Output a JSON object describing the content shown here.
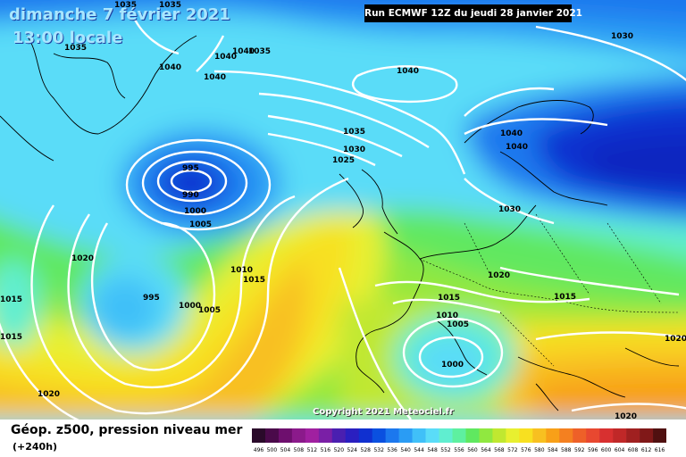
{
  "header": {
    "date": "dimanche 7 février 2021",
    "time": "13:00 locale",
    "run": "Run ECMWF 12Z du jeudi 28 janvier 2021"
  },
  "copyright": "Copyright 2021 Meteociel.fr",
  "legend": {
    "title": "Géop. z500, pression niveau mer",
    "subtitle": "(+240h)",
    "scale": [
      "496",
      "500",
      "504",
      "508",
      "512",
      "516",
      "520",
      "524",
      "528",
      "532",
      "536",
      "540",
      "544",
      "548",
      "552",
      "556",
      "560",
      "564",
      "568",
      "572",
      "576",
      "580",
      "584",
      "588",
      "592",
      "596",
      "600",
      "604",
      "608",
      "612",
      "616"
    ],
    "colors": [
      "#2a0a2a",
      "#4a0a4a",
      "#6e0f6e",
      "#8b1a8b",
      "#a020a0",
      "#7a1fa6",
      "#4a1fb0",
      "#2a1fc0",
      "#1030d0",
      "#0a50e0",
      "#1c78ee",
      "#2a9cf4",
      "#40c0f8",
      "#5adcf8",
      "#60eed0",
      "#5ef0a0",
      "#60e860",
      "#90e840",
      "#c0e830",
      "#e8f030",
      "#f8e020",
      "#f8c020",
      "#f8a018",
      "#f48020",
      "#ee6028",
      "#e84830",
      "#d83030",
      "#c02828",
      "#a02020",
      "#801818",
      "#501010"
    ]
  },
  "map_labels": [
    {
      "text": "1035",
      "name": "isobar-label-1035-a"
    },
    {
      "text": "1035",
      "name": "isobar-label-1035-b"
    },
    {
      "text": "1035",
      "name": "isobar-label-1035-c"
    },
    {
      "text": "1040",
      "name": "isobar-label-1040-a"
    },
    {
      "text": "1040",
      "name": "isobar-label-1040-b"
    },
    {
      "text": "1035",
      "name": "isobar-label-1035-d"
    },
    {
      "text": "1040",
      "name": "isobar-label-1040-c"
    },
    {
      "text": "1040",
      "name": "isobar-label-1040-d"
    },
    {
      "text": "1040",
      "name": "isobar-label-1040-e"
    },
    {
      "text": "1035",
      "name": "isobar-label-1035-e"
    },
    {
      "text": "1030",
      "name": "isobar-label-1030-a"
    },
    {
      "text": "1025",
      "name": "isobar-label-1025-a"
    },
    {
      "text": "995",
      "name": "isobar-label-995-a"
    },
    {
      "text": "990",
      "name": "isobar-label-990-a"
    },
    {
      "text": "1000",
      "name": "isobar-label-1000-a"
    },
    {
      "text": "1005",
      "name": "isobar-label-1005-a"
    },
    {
      "text": "1030",
      "name": "isobar-label-1030-b"
    },
    {
      "text": "1040",
      "name": "isobar-label-1040-f"
    },
    {
      "text": "1040",
      "name": "isobar-label-1040-g"
    },
    {
      "text": "1030",
      "name": "isobar-label-1030-c"
    },
    {
      "text": "1020",
      "name": "isobar-label-1020-a"
    },
    {
      "text": "1010",
      "name": "isobar-label-1010-a"
    },
    {
      "text": "1015",
      "name": "isobar-label-1015-a"
    },
    {
      "text": "995",
      "name": "isobar-label-995-b"
    },
    {
      "text": "1000",
      "name": "isobar-label-1000-b"
    },
    {
      "text": "1005",
      "name": "isobar-label-1005-b"
    },
    {
      "text": "1015",
      "name": "isobar-label-1015-b"
    },
    {
      "text": "1015",
      "name": "isobar-label-1015-c"
    },
    {
      "text": "1020",
      "name": "isobar-label-1020-b"
    },
    {
      "text": "1015",
      "name": "isobar-label-1015-d"
    },
    {
      "text": "1015",
      "name": "isobar-label-1015-e"
    },
    {
      "text": "1010",
      "name": "isobar-label-1010-b"
    },
    {
      "text": "1005",
      "name": "isobar-label-1005-c"
    },
    {
      "text": "1000",
      "name": "isobar-label-1000-c"
    },
    {
      "text": "1020",
      "name": "isobar-label-1020-c"
    },
    {
      "text": "1020",
      "name": "isobar-label-1020-d"
    },
    {
      "text": "1020",
      "name": "isobar-label-1020-e"
    }
  ]
}
